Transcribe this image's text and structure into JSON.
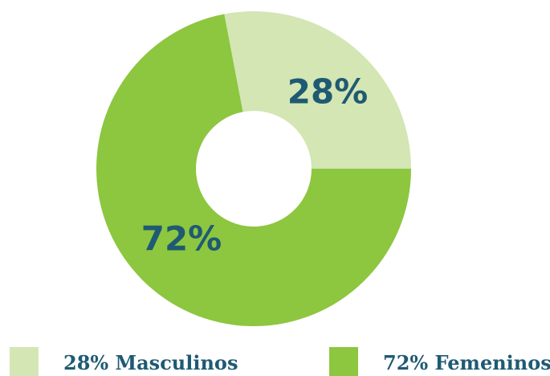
{
  "chart_data": {
    "type": "pie",
    "donut": true,
    "categories": [
      "28% Masculinos",
      "72% Femeninos"
    ],
    "values": [
      28,
      72
    ],
    "value_labels": [
      "28%",
      "72%"
    ],
    "colors": [
      "#d3e6b3",
      "#8dc63f"
    ]
  }
}
